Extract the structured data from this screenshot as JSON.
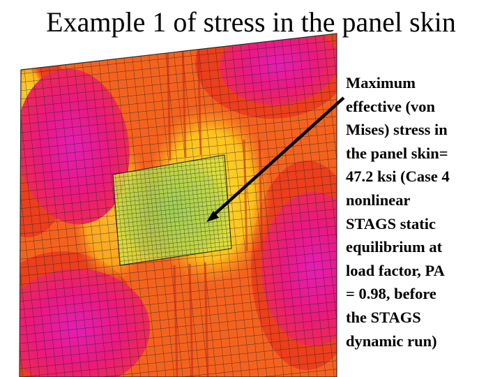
{
  "slide": {
    "title": "Example 1 of stress in the panel skin",
    "caption_lines": [
      "Maximum",
      "effective (von",
      "Mises) stress in",
      "the panel skin=",
      "47.2 ksi (Case 4",
      "nonlinear",
      "STAGS static",
      "equilibrium at",
      "load factor, PA",
      "= 0.98, before",
      "the STAGS",
      "dynamic run)"
    ]
  },
  "colors": {
    "panel_base": "#f4631e",
    "panel_dark": "#e8301c",
    "hot_spot": "#e9197f",
    "hot_spot_core": "#d81cc8",
    "yellow_zone": "#ffe21c",
    "green_zone": "#7fc84a",
    "mesh_line": "#1a1a1a",
    "arrow": "#000000"
  }
}
